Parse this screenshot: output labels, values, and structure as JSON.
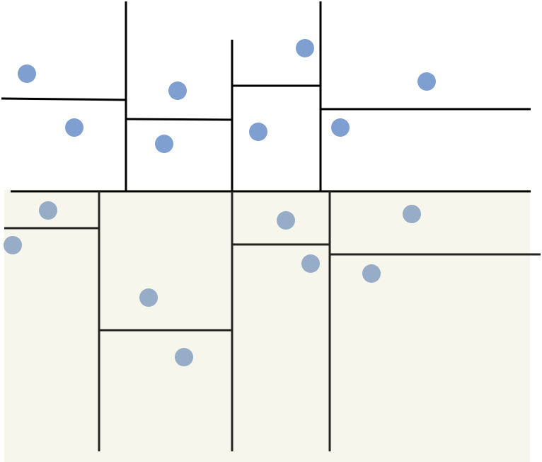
{
  "colors": {
    "background": "#ffffff",
    "lower_region_fill": "#f7f6ec",
    "line": "#000000",
    "line_dark": "#23231f",
    "point_upper": "#7f9fd0",
    "point_lower": "#96acc7"
  },
  "icons": {
    "points": "circle-dot"
  }
}
